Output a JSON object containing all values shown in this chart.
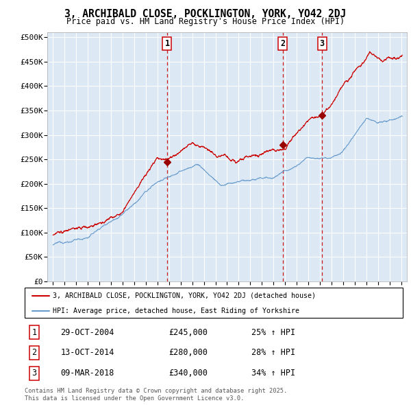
{
  "title": "3, ARCHIBALD CLOSE, POCKLINGTON, YORK, YO42 2DJ",
  "subtitle": "Price paid vs. HM Land Registry's House Price Index (HPI)",
  "background_color": "#dce9f5",
  "plot_bg_color": "#dce9f5",
  "red_line_label": "3, ARCHIBALD CLOSE, POCKLINGTON, YORK, YO42 2DJ (detached house)",
  "blue_line_label": "HPI: Average price, detached house, East Riding of Yorkshire",
  "transactions": [
    {
      "num": 1,
      "date": "29-OCT-2004",
      "price": 245000,
      "hpi_pct": "25% ↑ HPI",
      "year": 2004.83
    },
    {
      "num": 2,
      "date": "13-OCT-2014",
      "price": 280000,
      "hpi_pct": "28% ↑ HPI",
      "year": 2014.79
    },
    {
      "num": 3,
      "date": "09-MAR-2018",
      "price": 340000,
      "hpi_pct": "34% ↑ HPI",
      "year": 2018.19
    }
  ],
  "ylim": [
    0,
    510000
  ],
  "xlim": [
    1994.5,
    2025.5
  ],
  "yticks": [
    0,
    50000,
    100000,
    150000,
    200000,
    250000,
    300000,
    350000,
    400000,
    450000,
    500000
  ],
  "ytick_labels": [
    "£0",
    "£50K",
    "£100K",
    "£150K",
    "£200K",
    "£250K",
    "£300K",
    "£350K",
    "£400K",
    "£450K",
    "£500K"
  ],
  "xticks": [
    1995,
    1996,
    1997,
    1998,
    1999,
    2000,
    2001,
    2002,
    2003,
    2004,
    2005,
    2006,
    2007,
    2008,
    2009,
    2010,
    2011,
    2012,
    2013,
    2014,
    2015,
    2016,
    2017,
    2018,
    2019,
    2020,
    2021,
    2022,
    2023,
    2024,
    2025
  ],
  "footer": "Contains HM Land Registry data © Crown copyright and database right 2025.\nThis data is licensed under the Open Government Licence v3.0.",
  "red_color": "#cc0000",
  "blue_color": "#6699cc",
  "dashed_color": "#cc0000",
  "marker_color": "#990000"
}
